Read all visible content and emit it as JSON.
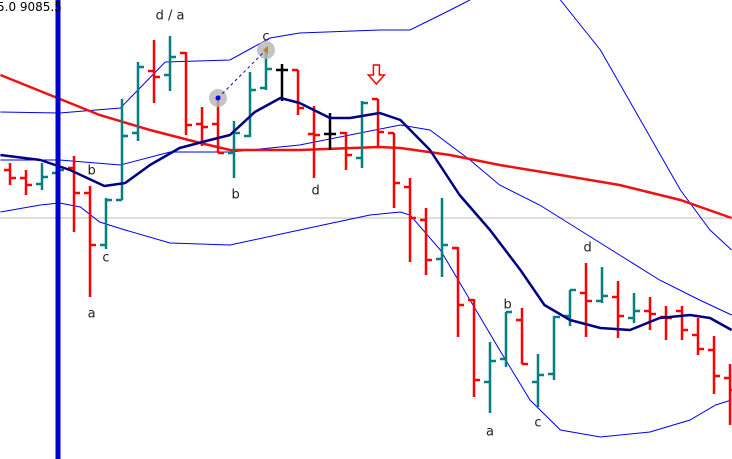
{
  "header": {
    "readout": "5.0 9085.5"
  },
  "chart_data": {
    "type": "ohlc",
    "title": "",
    "xlabel": "",
    "ylabel": "",
    "value_note": "relative price units (no axis printed)",
    "grid": false,
    "colors": {
      "up": "#008080",
      "down": "#ff0000",
      "unchanged": "#000000",
      "slow_ma": "#ee1111",
      "fast_ma": "#000080",
      "bands": "#0000ee",
      "vertical_marker": "#0000cc",
      "horizontal_line": "#bbbbbb",
      "arrow": "#ff0000"
    },
    "bars": [
      {
        "o": 289,
        "h": 296,
        "l": 274,
        "c": 281
      },
      {
        "o": 281,
        "h": 289,
        "l": 264,
        "c": 274
      },
      {
        "o": 275,
        "h": 296,
        "l": 269,
        "c": 282
      },
      {
        "o": 286,
        "h": 304,
        "l": 281,
        "c": 289
      },
      {
        "o": 291,
        "h": 303,
        "l": 227,
        "c": 266
      },
      {
        "o": 266,
        "h": 273,
        "l": 162,
        "c": 214
      },
      {
        "o": 214,
        "h": 261,
        "l": 210,
        "c": 259
      },
      {
        "o": 259,
        "h": 360,
        "l": 259,
        "c": 323
      },
      {
        "o": 326,
        "h": 397,
        "l": 318,
        "c": 392
      },
      {
        "o": 388,
        "h": 419,
        "l": 356,
        "c": 382
      },
      {
        "o": 384,
        "h": 423,
        "l": 368,
        "c": 402
      },
      {
        "o": 406,
        "h": 407,
        "l": 324,
        "c": 334
      },
      {
        "o": 335,
        "h": 352,
        "l": 313,
        "c": 332
      },
      {
        "o": 335,
        "h": 362,
        "l": 306,
        "c": 306
      },
      {
        "o": 306,
        "h": 338,
        "l": 281,
        "c": 326
      },
      {
        "o": 323,
        "h": 387,
        "l": 322,
        "c": 369
      },
      {
        "o": 371,
        "h": 409,
        "l": 369,
        "c": 390
      },
      {
        "o": 389,
        "h": 395,
        "l": 358,
        "c": 389
      },
      {
        "o": 389,
        "h": 389,
        "l": 344,
        "c": 351
      },
      {
        "o": 325,
        "h": 353,
        "l": 281,
        "c": 324
      },
      {
        "o": 325,
        "h": 346,
        "l": 309,
        "c": 325
      },
      {
        "o": 326,
        "h": 327,
        "l": 289,
        "c": 304
      },
      {
        "o": 301,
        "h": 358,
        "l": 291,
        "c": 356
      },
      {
        "o": 360,
        "h": 360,
        "l": 313,
        "c": 327
      },
      {
        "o": 326,
        "h": 326,
        "l": 251,
        "c": 276
      },
      {
        "o": 272,
        "h": 281,
        "l": 197,
        "c": 241
      },
      {
        "o": 239,
        "h": 251,
        "l": 184,
        "c": 199
      },
      {
        "o": 200,
        "h": 261,
        "l": 182,
        "c": 214
      },
      {
        "o": 211,
        "h": 212,
        "l": 122,
        "c": 154
      },
      {
        "o": 159,
        "h": 160,
        "l": 62,
        "c": 79
      },
      {
        "o": 77,
        "h": 117,
        "l": 46,
        "c": 98
      },
      {
        "o": 100,
        "h": 147,
        "l": 92,
        "c": 147
      },
      {
        "o": 139,
        "h": 151,
        "l": 95,
        "c": 95
      },
      {
        "o": 77,
        "h": 105,
        "l": 52,
        "c": 84
      },
      {
        "o": 85,
        "h": 143,
        "l": 79,
        "c": 142
      },
      {
        "o": 143,
        "h": 169,
        "l": 133,
        "c": 169
      },
      {
        "o": 166,
        "h": 196,
        "l": 122,
        "c": 158
      },
      {
        "o": 158,
        "h": 192,
        "l": 156,
        "c": 163
      },
      {
        "o": 162,
        "h": 178,
        "l": 121,
        "c": 143
      },
      {
        "o": 141,
        "h": 166,
        "l": 136,
        "c": 148
      },
      {
        "o": 148,
        "h": 162,
        "l": 129,
        "c": 145
      },
      {
        "o": 142,
        "h": 153,
        "l": 119,
        "c": 141
      },
      {
        "o": 148,
        "h": 153,
        "l": 119,
        "c": 129
      },
      {
        "o": 124,
        "h": 141,
        "l": 104,
        "c": 110
      },
      {
        "o": 109,
        "h": 123,
        "l": 65,
        "c": 83
      },
      {
        "o": 81,
        "h": 95,
        "l": 34,
        "c": 69
      }
    ],
    "lines": [
      {
        "role": "fast_ma",
        "width": 2.5,
        "points": [
          [
            -0.6,
            304
          ],
          [
            1.9,
            299
          ],
          [
            3.75,
            289
          ],
          [
            5.9,
            273
          ],
          [
            7.2,
            276
          ],
          [
            8.75,
            294
          ],
          [
            10.6,
            311
          ],
          [
            12.5,
            319
          ],
          [
            13.75,
            324
          ],
          [
            15.3,
            347
          ],
          [
            16.9,
            361
          ],
          [
            18.1,
            356
          ],
          [
            20,
            341
          ],
          [
            21.25,
            341
          ],
          [
            23.1,
            346
          ],
          [
            24.4,
            339
          ],
          [
            26.25,
            309
          ],
          [
            28.1,
            264
          ],
          [
            30,
            229
          ],
          [
            31.9,
            189
          ],
          [
            33.4,
            154
          ],
          [
            35,
            139
          ],
          [
            36.9,
            131
          ],
          [
            38.75,
            129
          ],
          [
            40.6,
            141
          ],
          [
            42.5,
            144
          ],
          [
            43.75,
            141
          ],
          [
            45.1,
            129
          ]
        ]
      },
      {
        "role": "slow_ma",
        "width": 2.5,
        "points": [
          [
            -0.6,
            384
          ],
          [
            2.5,
            364
          ],
          [
            5.6,
            344
          ],
          [
            8.75,
            329
          ],
          [
            11.9,
            316
          ],
          [
            13.75,
            309
          ],
          [
            18.1,
            309
          ],
          [
            23.1,
            312
          ],
          [
            24.4,
            311
          ],
          [
            27.5,
            304
          ],
          [
            30.6,
            294
          ],
          [
            34.4,
            284
          ],
          [
            38.1,
            274
          ],
          [
            41.9,
            259
          ],
          [
            45.1,
            241
          ]
        ]
      },
      {
        "role": "bands",
        "width": 1,
        "points": [
          [
            -0.6,
            347
          ],
          [
            3.1,
            346
          ],
          [
            6.9,
            351
          ],
          [
            9.7,
            397
          ],
          [
            13.75,
            399
          ],
          [
            16.25,
            421
          ],
          [
            18.1,
            426
          ],
          [
            23.1,
            429
          ],
          [
            25,
            429
          ],
          [
            26.9,
            444
          ],
          [
            28.75,
            459
          ]
        ]
      },
      {
        "role": "bands",
        "width": 1,
        "points": [
          [
            34.4,
            459
          ],
          [
            36.9,
            409
          ],
          [
            39.4,
            339
          ],
          [
            41.9,
            269
          ],
          [
            43.75,
            229
          ],
          [
            45.1,
            209
          ]
        ]
      },
      {
        "role": "bands",
        "width": 1,
        "points": [
          [
            -0.6,
            299
          ],
          [
            3.1,
            299
          ],
          [
            6.9,
            294
          ],
          [
            10,
            307
          ],
          [
            13.75,
            307
          ],
          [
            18.1,
            314
          ],
          [
            24.4,
            334
          ],
          [
            26.25,
            329
          ],
          [
            28.75,
            299
          ],
          [
            30.6,
            274
          ],
          [
            33.1,
            254
          ],
          [
            35.6,
            229
          ],
          [
            38.1,
            204
          ],
          [
            40.6,
            179
          ],
          [
            43.1,
            159
          ],
          [
            45.1,
            144
          ]
        ]
      },
      {
        "role": "bands",
        "width": 1,
        "points": [
          [
            -0.6,
            247
          ],
          [
            1.9,
            254
          ],
          [
            3.1,
            256
          ],
          [
            4.4,
            252
          ],
          [
            5.6,
            237
          ],
          [
            7.2,
            229
          ],
          [
            10,
            216
          ],
          [
            13.75,
            214
          ],
          [
            18.1,
            229
          ],
          [
            22.5,
            244
          ],
          [
            24.4,
            247
          ],
          [
            25,
            244
          ],
          [
            26.9,
            209
          ],
          [
            28.75,
            159
          ],
          [
            30.6,
            109
          ],
          [
            32.5,
            59
          ],
          [
            34.4,
            29
          ],
          [
            36.9,
            22
          ],
          [
            40,
            27
          ],
          [
            42.5,
            39
          ],
          [
            44.1,
            54
          ],
          [
            45.1,
            59
          ]
        ]
      }
    ],
    "horizontal_line": 241,
    "vertical_marker_bar": 3,
    "wave_labels": [
      {
        "text": "d / a",
        "bar": 10,
        "value": 443
      },
      {
        "text": "c",
        "bar": 16,
        "value": 422
      },
      {
        "text": "b",
        "bar": 5.1,
        "value": 288
      },
      {
        "text": "c",
        "bar": 6,
        "value": 201
      },
      {
        "text": "a",
        "bar": 5.1,
        "value": 145
      },
      {
        "text": "b",
        "bar": 14.1,
        "value": 264
      },
      {
        "text": "d",
        "bar": 19.1,
        "value": 268
      },
      {
        "text": "d",
        "bar": 36.1,
        "value": 211
      },
      {
        "text": "b",
        "bar": 31.1,
        "value": 154
      },
      {
        "text": "a",
        "bar": 30,
        "value": 27
      },
      {
        "text": "c",
        "bar": 33,
        "value": 36
      }
    ],
    "trend_connector": {
      "from": {
        "bar": 13,
        "value": 361
      },
      "to": {
        "bar": 16,
        "value": 409
      }
    },
    "down_arrow": {
      "bar": 22.9,
      "value": 384
    }
  }
}
